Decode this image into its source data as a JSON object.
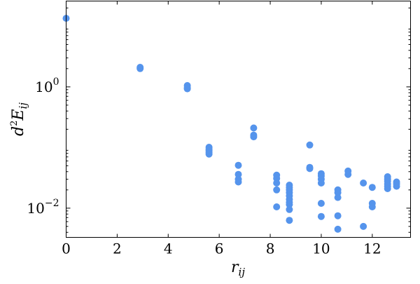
{
  "chart_data": {
    "type": "scatter",
    "xlabel": {
      "main": "r",
      "sub": "ij"
    },
    "ylabel": {
      "prefix": "d",
      "sup": "2",
      "main": "E",
      "sub": "ij"
    },
    "x_ticks": [
      "0",
      "2",
      "4",
      "6",
      "8",
      "10",
      "12"
    ],
    "y_ticks": [
      {
        "base": "10",
        "exp": "0",
        "value": 1
      },
      {
        "base": "10",
        "exp": "−2",
        "value": 0.01
      }
    ],
    "xlim": [
      0,
      13.5
    ],
    "ylim": [
      0.0033,
      26
    ],
    "y_scale": "log",
    "grid": false,
    "marker_color": "#5594ec",
    "points": [
      [
        0.0,
        13.5
      ],
      [
        2.9,
        2.1
      ],
      [
        2.9,
        2.0
      ],
      [
        4.75,
        1.05
      ],
      [
        4.75,
        0.97
      ],
      [
        4.75,
        0.93
      ],
      [
        5.6,
        0.101
      ],
      [
        5.6,
        0.094
      ],
      [
        5.6,
        0.089
      ],
      [
        5.6,
        0.083
      ],
      [
        5.6,
        0.078
      ],
      [
        6.75,
        0.051
      ],
      [
        6.75,
        0.036
      ],
      [
        6.75,
        0.03
      ],
      [
        6.75,
        0.027
      ],
      [
        7.35,
        0.21
      ],
      [
        7.35,
        0.16
      ],
      [
        7.35,
        0.15
      ],
      [
        8.25,
        0.035
      ],
      [
        8.25,
        0.031
      ],
      [
        8.25,
        0.026
      ],
      [
        8.25,
        0.02
      ],
      [
        8.25,
        0.0105
      ],
      [
        8.75,
        0.024
      ],
      [
        8.75,
        0.022
      ],
      [
        8.75,
        0.02
      ],
      [
        8.75,
        0.018
      ],
      [
        8.75,
        0.016
      ],
      [
        8.75,
        0.014
      ],
      [
        8.75,
        0.0125
      ],
      [
        8.75,
        0.0115
      ],
      [
        8.75,
        0.0095
      ],
      [
        8.75,
        0.0063
      ],
      [
        9.55,
        0.11
      ],
      [
        9.55,
        0.047
      ],
      [
        9.55,
        0.045
      ],
      [
        10.0,
        0.037
      ],
      [
        10.0,
        0.034
      ],
      [
        10.0,
        0.03
      ],
      [
        10.0,
        0.026
      ],
      [
        10.0,
        0.012
      ],
      [
        10.0,
        0.0073
      ],
      [
        11.05,
        0.041
      ],
      [
        11.05,
        0.036
      ],
      [
        10.65,
        0.02
      ],
      [
        10.65,
        0.018
      ],
      [
        10.65,
        0.015
      ],
      [
        10.65,
        0.0075
      ],
      [
        10.65,
        0.0045
      ],
      [
        11.65,
        0.026
      ],
      [
        11.65,
        0.005
      ],
      [
        12.0,
        0.022
      ],
      [
        12.0,
        0.012
      ],
      [
        12.0,
        0.0105
      ],
      [
        12.6,
        0.033
      ],
      [
        12.6,
        0.03
      ],
      [
        12.6,
        0.028
      ],
      [
        12.6,
        0.025
      ],
      [
        12.6,
        0.023
      ],
      [
        12.6,
        0.021
      ],
      [
        12.95,
        0.027
      ],
      [
        12.95,
        0.025
      ],
      [
        12.95,
        0.023
      ]
    ]
  }
}
